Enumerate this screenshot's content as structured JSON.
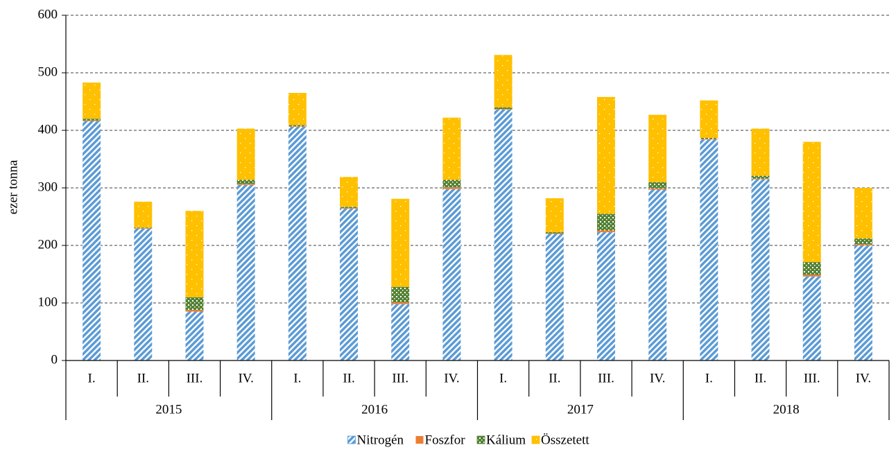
{
  "chart_data": {
    "type": "stacked_bar",
    "y_axis_label": "ezer tonna",
    "categories": [
      "I.",
      "II.",
      "III.",
      "IV.",
      "I.",
      "II.",
      "III.",
      "IV.",
      "I.",
      "II.",
      "III.",
      "IV.",
      "I.",
      "II.",
      "III.",
      "IV."
    ],
    "groups": [
      "2015",
      "2016",
      "2017",
      "2018"
    ],
    "series": [
      {
        "name": "Nitrogén",
        "color": "#5b9bd5",
        "pattern": "stripes",
        "values": [
          416,
          229,
          85,
          305,
          406,
          264,
          98,
          298,
          436,
          220,
          223,
          297,
          384,
          315,
          146,
          200
        ]
      },
      {
        "name": "Foszfor",
        "color": "#ed7d31",
        "pattern": "solid",
        "values": [
          1,
          1,
          3,
          2,
          1,
          1,
          3,
          3,
          1,
          1,
          3,
          2,
          1,
          1,
          3,
          2
        ]
      },
      {
        "name": "Kálium",
        "color": "#548235",
        "pattern": "checker",
        "values": [
          3,
          1,
          22,
          7,
          2,
          2,
          27,
          13,
          3,
          2,
          29,
          11,
          2,
          5,
          22,
          10
        ]
      },
      {
        "name": "Összetett",
        "color": "#ffc000",
        "pattern": "dots",
        "values": [
          63,
          45,
          150,
          89,
          56,
          52,
          153,
          108,
          91,
          59,
          203,
          117,
          65,
          82,
          209,
          88
        ]
      }
    ],
    "ylim": [
      0,
      600
    ],
    "yticks": [
      0,
      100,
      200,
      300,
      400,
      500,
      600
    ],
    "grid": true,
    "legend": "bottom"
  }
}
